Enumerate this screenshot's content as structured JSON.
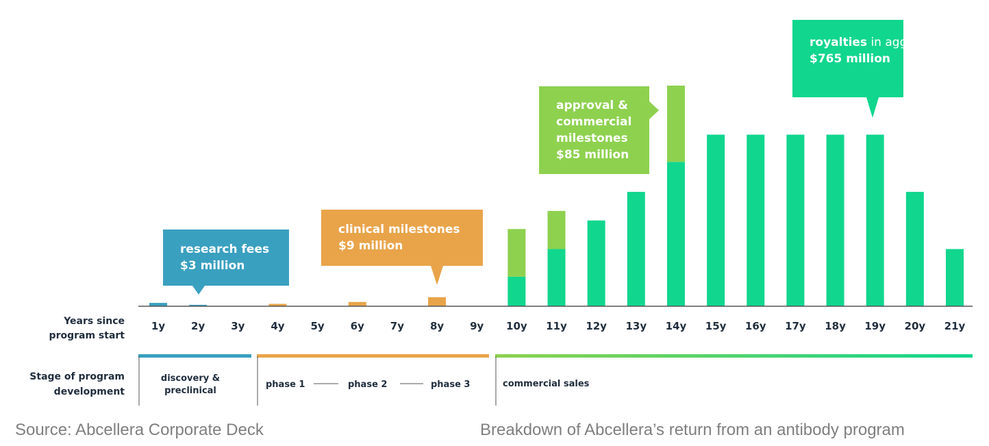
{
  "chart_data": {
    "type": "bar",
    "categories": [
      "1y",
      "2y",
      "3y",
      "4y",
      "5y",
      "6y",
      "7y",
      "8y",
      "9y",
      "10y",
      "11y",
      "12y",
      "13y",
      "14y",
      "15y",
      "16y",
      "17y",
      "18y",
      "19y",
      "20y",
      "21y"
    ],
    "series": [
      {
        "name": "research fees",
        "color": "#3aa0c0",
        "values": [
          0.7,
          0.3,
          0,
          0,
          0,
          0,
          0,
          0,
          0,
          0,
          0,
          0,
          0,
          0,
          0,
          0,
          0,
          0,
          0,
          0,
          0
        ]
      },
      {
        "name": "clinical milestones",
        "color": "#e9a44a",
        "values": [
          0,
          0,
          0,
          0.5,
          0,
          0.9,
          0,
          1.9,
          0,
          0,
          0,
          0,
          0,
          0,
          0,
          0,
          0,
          0,
          0,
          0,
          0
        ]
      },
      {
        "name": "royalties",
        "color": "#11d68e",
        "values": [
          0,
          0,
          0,
          0,
          0,
          0,
          0,
          0,
          0,
          6.2,
          12.0,
          18.0,
          24.0,
          30.3,
          36.0,
          36.0,
          36.0,
          36.0,
          36.0,
          24.0,
          12.0
        ]
      },
      {
        "name": "approval & commercial milestones",
        "color": "#8ed14f",
        "values": [
          0,
          0,
          0,
          0,
          0,
          0,
          0,
          0,
          0,
          10.0,
          8.0,
          0,
          0,
          16.0,
          0,
          0,
          0,
          0,
          0,
          0,
          0
        ]
      }
    ],
    "ylim": [
      0,
      46
    ],
    "xlabel": "Years since program start",
    "stage_label": "Stage of program development",
    "stages": [
      {
        "label": "discovery & preclinical",
        "color": "#3aa0c0",
        "from": 0,
        "to": 2
      },
      {
        "label": "phase 1",
        "color": "#e9a44a",
        "from": 3,
        "to": 8
      },
      {
        "label": "phase 2",
        "color": "#e9a44a",
        "from": 3,
        "to": 8
      },
      {
        "label": "phase 3",
        "color": "#e9a44a",
        "from": 3,
        "to": 8
      },
      {
        "label": "commercial sales",
        "color": "#11d68e",
        "from": 9,
        "to": 20
      }
    ],
    "annotations": [
      {
        "bold": "research fees",
        "text": "$3 million",
        "color": "#3aa0c0"
      },
      {
        "bold": "clinical milestones",
        "text": "$9 million",
        "color": "#e9a44a"
      },
      {
        "bold": "approval & commercial milestones",
        "text": "$85 million",
        "color": "#8ed14f"
      },
      {
        "bold": "royalties",
        "text": "in aggregate of",
        "value": "$765 million",
        "color": "#11d68e"
      }
    ]
  },
  "captions": {
    "source": "Source: Abcellera Corporate Deck",
    "description": "Breakdown of Abcellera’s return from an antibody program"
  }
}
